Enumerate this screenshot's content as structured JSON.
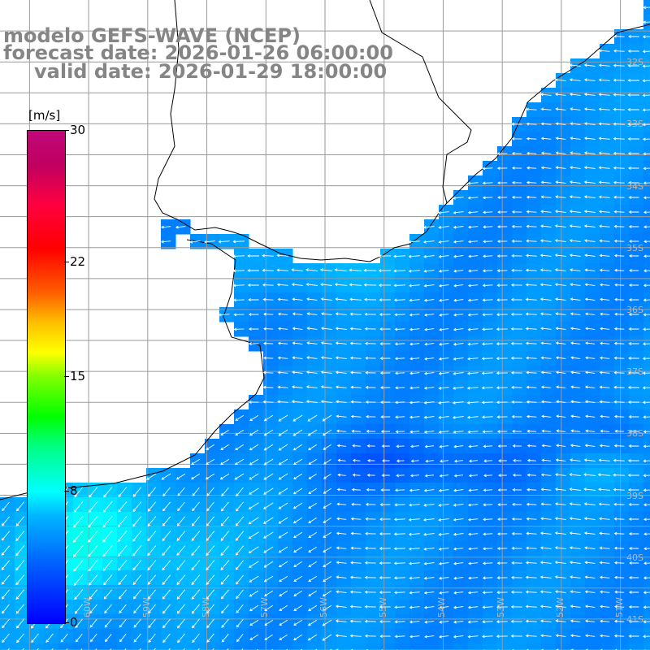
{
  "title": {
    "line1": "modelo GEFS-WAVE (NCEP)",
    "line2": "forecast date: 2026-01-26 06:00:00",
    "line3": "valid date: 2026-01-29 18:00:00"
  },
  "colorbar": {
    "unit": "[m/s]",
    "min": 0,
    "max": 30,
    "ticks": [
      {
        "value": 30,
        "label": "30"
      },
      {
        "value": 22,
        "label": "22"
      },
      {
        "value": 15,
        "label": "15"
      },
      {
        "value": 8,
        "label": "8"
      },
      {
        "value": 0,
        "label": "0"
      }
    ],
    "colors": [
      "#0000ff",
      "#00b8ff",
      "#00ffff",
      "#00ff00",
      "#ffff00",
      "#ff6000",
      "#ff0000",
      "#c0087a"
    ]
  },
  "map": {
    "lon_range": [
      -61.5,
      -50.5
    ],
    "lat_range": [
      -41.5,
      -31
    ],
    "lat_labels": [
      "32S",
      "33S",
      "34S",
      "35S",
      "36S",
      "37S",
      "38S",
      "39S",
      "40S",
      "41S"
    ],
    "lon_labels": [
      "60W",
      "59W",
      "58W",
      "57W",
      "56W",
      "55W",
      "54W",
      "53W",
      "52W",
      "51W"
    ],
    "land_color": "#ffffff",
    "arrow_color": "#ffffff",
    "grid_color": "#9a9a9a"
  }
}
